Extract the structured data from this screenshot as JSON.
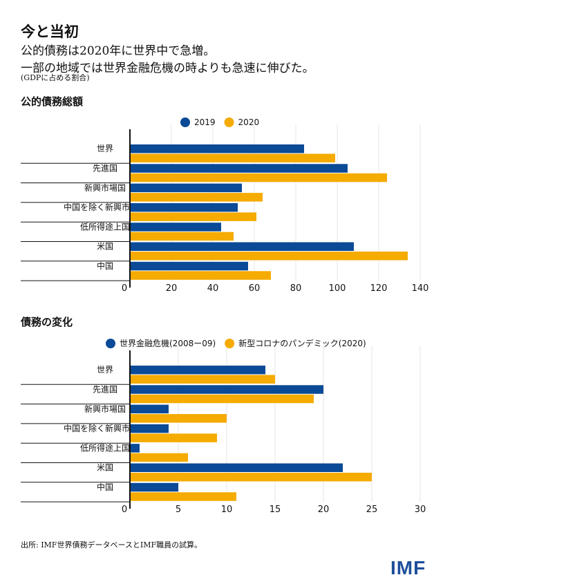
{
  "header": {
    "kicker": "今と当初",
    "title_line1": "公的債務は2020年に世界中で急増。",
    "title_line2": "一部の地域では世界金融危機の時よりも急速に伸びた。",
    "unit": "(GDPに占める割合)"
  },
  "colors": {
    "series1": "#0a4a96",
    "series2": "#f5ab00",
    "axis": "#111111",
    "grid": "#e6e6e6"
  },
  "chart_data": [
    {
      "type": "bar",
      "orientation": "horizontal",
      "title": "公的債務総額",
      "categories": [
        "世界",
        "先進国",
        "新興市場国",
        "中国を除く新興市場国",
        "低所得途上国",
        "米国",
        "中国"
      ],
      "series": [
        {
          "name": "2019",
          "values": [
            84,
            105,
            54,
            52,
            44,
            108,
            57
          ]
        },
        {
          "name": "2020",
          "values": [
            99,
            124,
            64,
            61,
            50,
            134,
            68
          ]
        }
      ],
      "xticks": [
        0,
        20,
        40,
        60,
        80,
        100,
        120,
        140
      ],
      "xlim": [
        0,
        140
      ],
      "legend": "top-center",
      "grid": true
    },
    {
      "type": "bar",
      "orientation": "horizontal",
      "title": "債務の変化",
      "categories": [
        "世界",
        "先進国",
        "新興市場国",
        "中国を除く新興市場国",
        "低所得途上国",
        "米国",
        "中国"
      ],
      "series": [
        {
          "name": "世界金融危機(2008ー09)",
          "values": [
            14,
            20,
            4,
            4,
            1,
            22,
            5
          ]
        },
        {
          "name": "新型コロナのパンデミック(2020)",
          "values": [
            15,
            19,
            10,
            9,
            6,
            25,
            11
          ]
        }
      ],
      "xticks": [
        0,
        5,
        10,
        15,
        20,
        25,
        30
      ],
      "xlim": [
        0,
        30
      ],
      "legend": "top-center",
      "grid": true
    }
  ],
  "footer": {
    "source": "出所: IMF世界債務データベースとIMF職員の試算。",
    "logo": "IMF"
  }
}
